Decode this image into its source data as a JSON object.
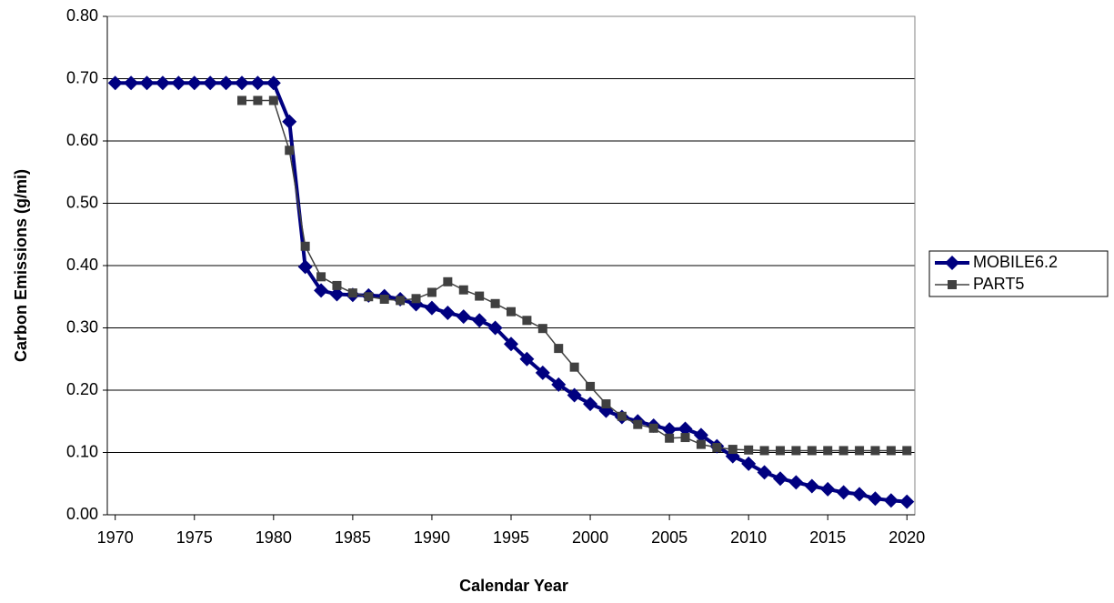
{
  "chart_data": {
    "type": "line",
    "xlabel": "Calendar Year",
    "ylabel": "Carbon Emissions (g/mi)",
    "x": [
      1970,
      1971,
      1972,
      1973,
      1974,
      1975,
      1976,
      1977,
      1978,
      1979,
      1980,
      1981,
      1982,
      1983,
      1984,
      1985,
      1986,
      1987,
      1988,
      1989,
      1990,
      1991,
      1992,
      1993,
      1994,
      1995,
      1996,
      1997,
      1998,
      1999,
      2000,
      2001,
      2002,
      2003,
      2004,
      2005,
      2006,
      2007,
      2008,
      2009,
      2010,
      2011,
      2012,
      2013,
      2014,
      2015,
      2016,
      2017,
      2018,
      2019,
      2020
    ],
    "series": [
      {
        "name": "MOBILE6.2",
        "color": "#000080",
        "marker": "diamond",
        "values": [
          0.693,
          0.693,
          0.693,
          0.693,
          0.693,
          0.693,
          0.693,
          0.693,
          0.693,
          0.693,
          0.693,
          0.631,
          0.398,
          0.36,
          0.354,
          0.353,
          0.352,
          0.351,
          0.346,
          0.338,
          0.332,
          0.324,
          0.318,
          0.312,
          0.3,
          0.274,
          0.25,
          0.228,
          0.209,
          0.192,
          0.178,
          0.167,
          0.157,
          0.15,
          0.143,
          0.137,
          0.138,
          0.128,
          0.11,
          0.094,
          0.082,
          0.068,
          0.058,
          0.052,
          0.046,
          0.041,
          0.036,
          0.033,
          0.026,
          0.023,
          0.021
        ]
      },
      {
        "name": "PART5",
        "color": "#404040",
        "marker": "square",
        "values": [
          null,
          null,
          null,
          null,
          null,
          null,
          null,
          null,
          0.665,
          0.665,
          0.665,
          0.585,
          0.431,
          0.382,
          0.368,
          0.356,
          0.35,
          0.346,
          0.344,
          0.347,
          0.357,
          0.374,
          0.361,
          0.351,
          0.339,
          0.326,
          0.312,
          0.299,
          0.267,
          0.237,
          0.206,
          0.178,
          0.158,
          0.145,
          0.139,
          0.123,
          0.124,
          0.113,
          0.108,
          0.105,
          0.104,
          0.103,
          0.103,
          0.103,
          0.103,
          0.103,
          0.103,
          0.103,
          0.103,
          0.103,
          0.103
        ]
      }
    ],
    "xlim": [
      1969.5,
      2020.5
    ],
    "xticks": [
      1970,
      1975,
      1980,
      1985,
      1990,
      1995,
      2000,
      2005,
      2010,
      2015,
      2020
    ],
    "ylim": [
      0,
      0.8
    ],
    "yticks": [
      {
        "value": 0,
        "label": "0.00"
      },
      {
        "value": 0.1,
        "label": "0.10"
      },
      {
        "value": 0.2,
        "label": "0.20"
      },
      {
        "value": 0.3,
        "label": "0.30"
      },
      {
        "value": 0.4,
        "label": "0.40"
      },
      {
        "value": 0.5,
        "label": "0.50"
      },
      {
        "value": 0.6,
        "label": "0.60"
      },
      {
        "value": 0.7,
        "label": "0.70"
      },
      {
        "value": 0.8,
        "label": "0.80"
      }
    ],
    "grid": true,
    "legend": "right"
  }
}
